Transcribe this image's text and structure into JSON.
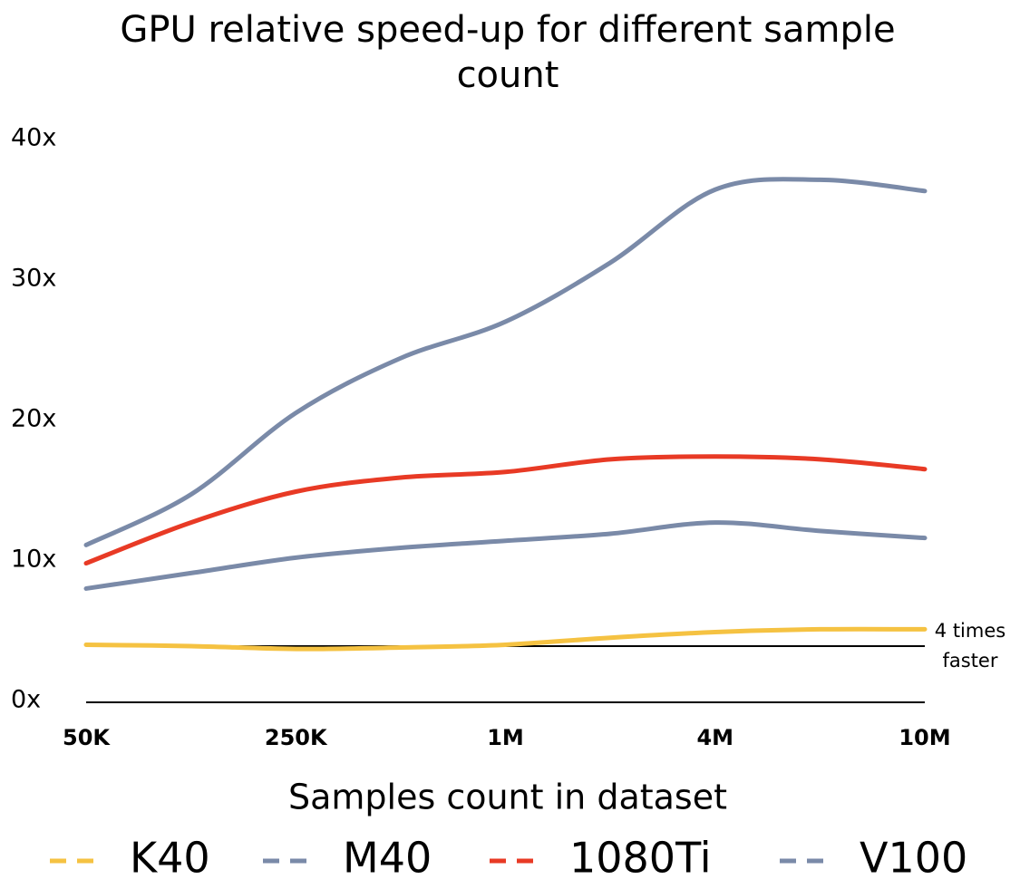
{
  "chart_data": {
    "type": "line",
    "title": "GPU relative speed-up for different sample count",
    "xlabel": "Samples count in dataset",
    "categories": [
      "50K",
      null,
      "250K",
      null,
      "1M",
      null,
      "4M",
      null,
      "10M"
    ],
    "series": [
      {
        "name": "K40",
        "color": "#f5c242",
        "values": [
          4.1,
          4.0,
          3.8,
          3.9,
          4.1,
          4.6,
          5.0,
          5.2,
          5.2
        ]
      },
      {
        "name": "M40",
        "color": "#7a8aa8",
        "values": [
          8.1,
          9.2,
          10.3,
          11.0,
          11.5,
          12.0,
          12.8,
          12.2,
          11.7
        ]
      },
      {
        "name": "1080Ti",
        "color": "#e83a25",
        "values": [
          9.9,
          12.8,
          15.0,
          16.0,
          16.4,
          17.3,
          17.5,
          17.3,
          16.6
        ]
      },
      {
        "name": "V100",
        "color": "#7a8aa8",
        "values": [
          11.2,
          14.8,
          20.6,
          24.5,
          27.1,
          31.3,
          36.5,
          37.2,
          36.4
        ]
      }
    ],
    "ylim": [
      0,
      40
    ],
    "yticks": [
      {
        "value": 0,
        "label": "0x"
      },
      {
        "value": 10,
        "label": "10x"
      },
      {
        "value": 20,
        "label": "20x"
      },
      {
        "value": 30,
        "label": "30x"
      },
      {
        "value": 40,
        "label": "40x"
      }
    ],
    "grid": false,
    "reference_line": {
      "value": 4,
      "lines": [
        "4 times",
        "faster"
      ],
      "color": "#000000"
    },
    "legend": "bottom"
  }
}
